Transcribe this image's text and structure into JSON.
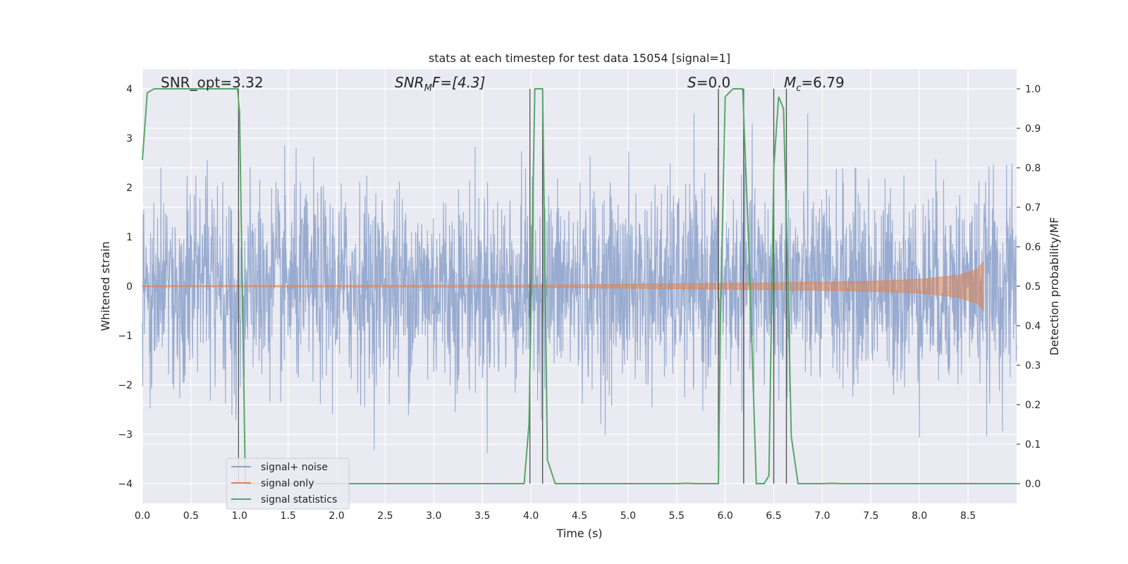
{
  "chart_data": {
    "type": "line",
    "title": "stats at each timestep for test data 15054 [signal=1]",
    "xlabel": "Time (s)",
    "ylabel_left": "Whitened strain",
    "ylabel_right": "Detection probability/MF",
    "xlim": [
      0.0,
      9.0
    ],
    "ylim_left": [
      -4.4,
      4.4
    ],
    "ylim_right": [
      -0.05,
      1.05
    ],
    "x_ticks": [
      "0.0",
      "0.5",
      "1.0",
      "1.5",
      "2.0",
      "2.5",
      "3.0",
      "3.5",
      "4.0",
      "4.5",
      "5.0",
      "5.5",
      "6.0",
      "6.5",
      "7.0",
      "7.5",
      "8.0",
      "8.5"
    ],
    "y_ticks_left": [
      "4",
      "3",
      "2",
      "1",
      "0",
      "−1",
      "−2",
      "−3",
      "−4"
    ],
    "y_ticks_right": [
      "1.0",
      "0.9",
      "0.8",
      "0.7",
      "0.6",
      "0.5",
      "0.4",
      "0.3",
      "0.2",
      "0.1",
      "0.0"
    ],
    "grid": true,
    "legend_position": "lower-left",
    "colors": {
      "background": "#eaeaf2",
      "noise": "#8fa4cc",
      "signal": "#dd8452",
      "stats": "#55a868",
      "vline": "#555555"
    },
    "annotations": {
      "snr_opt": "SNR_opt=3.32",
      "snr_mf_main": "SNR",
      "snr_mf_sub": "M",
      "snr_mf_rest": "F=[4.3]",
      "s_main": "S",
      "s_rest": "=0.0",
      "mc_main": "M",
      "mc_sub": "c",
      "mc_rest": "=6.79"
    },
    "series": [
      {
        "name": "signal+ noise",
        "envelope": {
          "typical_abs": 1.6,
          "max_abs": 3.5,
          "x_range": [
            0.0,
            9.0
          ]
        }
      },
      {
        "name": "signal only",
        "envelope": {
          "x": [
            0.0,
            4.0,
            5.5,
            6.5,
            7.5,
            8.0,
            8.4,
            8.6,
            8.66
          ],
          "amplitude": [
            0.01,
            0.02,
            0.05,
            0.07,
            0.1,
            0.14,
            0.22,
            0.35,
            0.5
          ]
        }
      },
      {
        "name": "signal statistics",
        "x": [
          0.0,
          0.05,
          0.12,
          0.3,
          0.5,
          0.7,
          0.9,
          0.98,
          1.0,
          1.06,
          1.2,
          1.5,
          2.0,
          2.5,
          3.0,
          3.5,
          3.93,
          3.98,
          4.04,
          4.08,
          4.12,
          4.17,
          4.25,
          4.5,
          5.0,
          5.5,
          5.6,
          5.7,
          5.93,
          5.95,
          6.0,
          6.08,
          6.18,
          6.25,
          6.32,
          6.4,
          6.45,
          6.5,
          6.55,
          6.6,
          6.64,
          6.68,
          6.75,
          6.85,
          7.0,
          7.1,
          7.2,
          7.5,
          8.0,
          8.5,
          9.0
        ],
        "y": [
          0.82,
          0.99,
          1.0,
          1.0,
          1.0,
          1.0,
          1.0,
          1.0,
          0.94,
          0.0,
          0.0,
          0.0,
          0.0,
          0.0,
          0.0,
          0.0,
          0.0,
          0.15,
          1.0,
          1.0,
          1.0,
          0.06,
          0.0,
          0.0,
          0.0,
          0.0,
          0.001,
          0.0,
          0.0,
          0.4,
          0.98,
          1.0,
          1.0,
          0.55,
          0.0,
          0.0,
          0.02,
          0.8,
          0.98,
          0.95,
          0.58,
          0.12,
          0.0,
          0.0,
          0.0,
          0.001,
          0.0,
          0.0,
          0.0,
          0.0,
          0.0
        ]
      }
    ],
    "vertical_lines": [
      0.99,
      3.99,
      4.12,
      5.93,
      6.19,
      6.5,
      6.63
    ]
  }
}
